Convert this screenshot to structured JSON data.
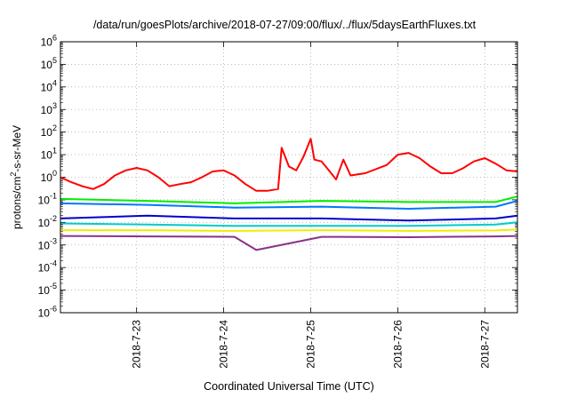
{
  "chart_data": {
    "type": "line",
    "title": "/data/run/goesPlots/archive/2018-07-27/09:00/flux/../flux/5daysEarthFluxes.txt",
    "xlabel": "Coordinated Universal Time (UTC)",
    "ylabel_parts": [
      "protons/cm",
      "2",
      "-s-sr-MeV"
    ],
    "y_scale": "log",
    "ylim": [
      1e-06,
      1000000.0
    ],
    "y_ticks": [
      {
        "base": "10",
        "exp": "-6",
        "value": 1e-06
      },
      {
        "base": "10",
        "exp": "-5",
        "value": 1e-05
      },
      {
        "base": "10",
        "exp": "-4",
        "value": 0.0001
      },
      {
        "base": "10",
        "exp": "-3",
        "value": 0.001
      },
      {
        "base": "10",
        "exp": "-2",
        "value": 0.01
      },
      {
        "base": "10",
        "exp": "-1",
        "value": 0.1
      },
      {
        "base": "10",
        "exp": "0",
        "value": 1
      },
      {
        "base": "10",
        "exp": "1",
        "value": 10
      },
      {
        "base": "10",
        "exp": "2",
        "value": 100
      },
      {
        "base": "10",
        "exp": "3",
        "value": 1000
      },
      {
        "base": "10",
        "exp": "4",
        "value": 10000
      },
      {
        "base": "10",
        "exp": "5",
        "value": 100000
      },
      {
        "base": "10",
        "exp": "6",
        "value": 1000000
      }
    ],
    "xlim": [
      "2018-07-22 03:00",
      "2018-07-27 09:00"
    ],
    "x_ticks": [
      "2018-7-23",
      "2018-7-24",
      "2018-7-25",
      "2018-7-26",
      "2018-7-27"
    ],
    "grid": true,
    "series": [
      {
        "color": "#ff0000",
        "points": [
          [
            "2018-07-22 03:00",
            1.0
          ],
          [
            "2018-07-22 06:00",
            0.6
          ],
          [
            "2018-07-22 09:00",
            0.4
          ],
          [
            "2018-07-22 12:00",
            0.3
          ],
          [
            "2018-07-22 15:00",
            0.5
          ],
          [
            "2018-07-22 18:00",
            1.2
          ],
          [
            "2018-07-22 21:00",
            2.0
          ],
          [
            "2018-07-23 00:00",
            2.6
          ],
          [
            "2018-07-23 03:00",
            2.0
          ],
          [
            "2018-07-23 06:00",
            1.0
          ],
          [
            "2018-07-23 09:00",
            0.4
          ],
          [
            "2018-07-23 12:00",
            0.5
          ],
          [
            "2018-07-23 15:00",
            0.6
          ],
          [
            "2018-07-23 18:00",
            1.0
          ],
          [
            "2018-07-23 21:00",
            1.8
          ],
          [
            "2018-07-24 00:00",
            2.0
          ],
          [
            "2018-07-24 03:00",
            1.2
          ],
          [
            "2018-07-24 06:00",
            0.5
          ],
          [
            "2018-07-24 09:00",
            0.25
          ],
          [
            "2018-07-24 12:00",
            0.25
          ],
          [
            "2018-07-24 15:00",
            0.3
          ],
          [
            "2018-07-24 16:00",
            20
          ],
          [
            "2018-07-24 18:00",
            3
          ],
          [
            "2018-07-24 20:00",
            2
          ],
          [
            "2018-07-24 22:00",
            8
          ],
          [
            "2018-07-25 00:00",
            50
          ],
          [
            "2018-07-25 01:00",
            6
          ],
          [
            "2018-07-25 03:00",
            5
          ],
          [
            "2018-07-25 05:00",
            2
          ],
          [
            "2018-07-25 07:00",
            0.8
          ],
          [
            "2018-07-25 09:00",
            6
          ],
          [
            "2018-07-25 11:00",
            1.2
          ],
          [
            "2018-07-25 15:00",
            1.5
          ],
          [
            "2018-07-25 21:00",
            3.5
          ],
          [
            "2018-07-26 00:00",
            10
          ],
          [
            "2018-07-26 03:00",
            12
          ],
          [
            "2018-07-26 06:00",
            7
          ],
          [
            "2018-07-26 09:00",
            3
          ],
          [
            "2018-07-26 12:00",
            1.5
          ],
          [
            "2018-07-26 15:00",
            1.5
          ],
          [
            "2018-07-26 18:00",
            2.5
          ],
          [
            "2018-07-26 21:00",
            5
          ],
          [
            "2018-07-27 00:00",
            7
          ],
          [
            "2018-07-27 03:00",
            4
          ],
          [
            "2018-07-27 06:00",
            2
          ],
          [
            "2018-07-27 09:00",
            1.8
          ]
        ]
      },
      {
        "color": "#00ee00",
        "points": [
          [
            "2018-07-22 03:00",
            0.11
          ],
          [
            "2018-07-23 03:00",
            0.09
          ],
          [
            "2018-07-24 03:00",
            0.07
          ],
          [
            "2018-07-25 03:00",
            0.09
          ],
          [
            "2018-07-26 03:00",
            0.08
          ],
          [
            "2018-07-27 03:00",
            0.08
          ],
          [
            "2018-07-27 09:00",
            0.14
          ]
        ]
      },
      {
        "color": "#0077ff",
        "points": [
          [
            "2018-07-22 03:00",
            0.07
          ],
          [
            "2018-07-23 03:00",
            0.06
          ],
          [
            "2018-07-24 03:00",
            0.045
          ],
          [
            "2018-07-25 03:00",
            0.05
          ],
          [
            "2018-07-26 03:00",
            0.04
          ],
          [
            "2018-07-27 03:00",
            0.05
          ],
          [
            "2018-07-27 09:00",
            0.09
          ]
        ]
      },
      {
        "color": "#0000cc",
        "points": [
          [
            "2018-07-22 03:00",
            0.015
          ],
          [
            "2018-07-23 03:00",
            0.02
          ],
          [
            "2018-07-24 03:00",
            0.015
          ],
          [
            "2018-07-25 03:00",
            0.015
          ],
          [
            "2018-07-26 03:00",
            0.012
          ],
          [
            "2018-07-27 03:00",
            0.015
          ],
          [
            "2018-07-27 09:00",
            0.02
          ]
        ]
      },
      {
        "color": "#00cccc",
        "points": [
          [
            "2018-07-22 03:00",
            0.009
          ],
          [
            "2018-07-23 03:00",
            0.008
          ],
          [
            "2018-07-24 03:00",
            0.007
          ],
          [
            "2018-07-25 03:00",
            0.007
          ],
          [
            "2018-07-26 03:00",
            0.007
          ],
          [
            "2018-07-27 03:00",
            0.008
          ],
          [
            "2018-07-27 09:00",
            0.01
          ]
        ]
      },
      {
        "color": "#eeee00",
        "points": [
          [
            "2018-07-22 03:00",
            0.0045
          ],
          [
            "2018-07-23 03:00",
            0.0045
          ],
          [
            "2018-07-24 03:00",
            0.0042
          ],
          [
            "2018-07-25 03:00",
            0.0045
          ],
          [
            "2018-07-26 03:00",
            0.0042
          ],
          [
            "2018-07-27 03:00",
            0.0044
          ],
          [
            "2018-07-27 09:00",
            0.0048
          ]
        ]
      },
      {
        "color": "#883388",
        "points": [
          [
            "2018-07-22 03:00",
            0.0025
          ],
          [
            "2018-07-23 03:00",
            0.0024
          ],
          [
            "2018-07-24 03:00",
            0.0023
          ],
          [
            "2018-07-24 09:00",
            0.0006
          ],
          [
            "2018-07-25 03:00",
            0.0023
          ],
          [
            "2018-07-26 03:00",
            0.0022
          ],
          [
            "2018-07-27 03:00",
            0.0024
          ],
          [
            "2018-07-27 09:00",
            0.0025
          ]
        ]
      }
    ]
  }
}
